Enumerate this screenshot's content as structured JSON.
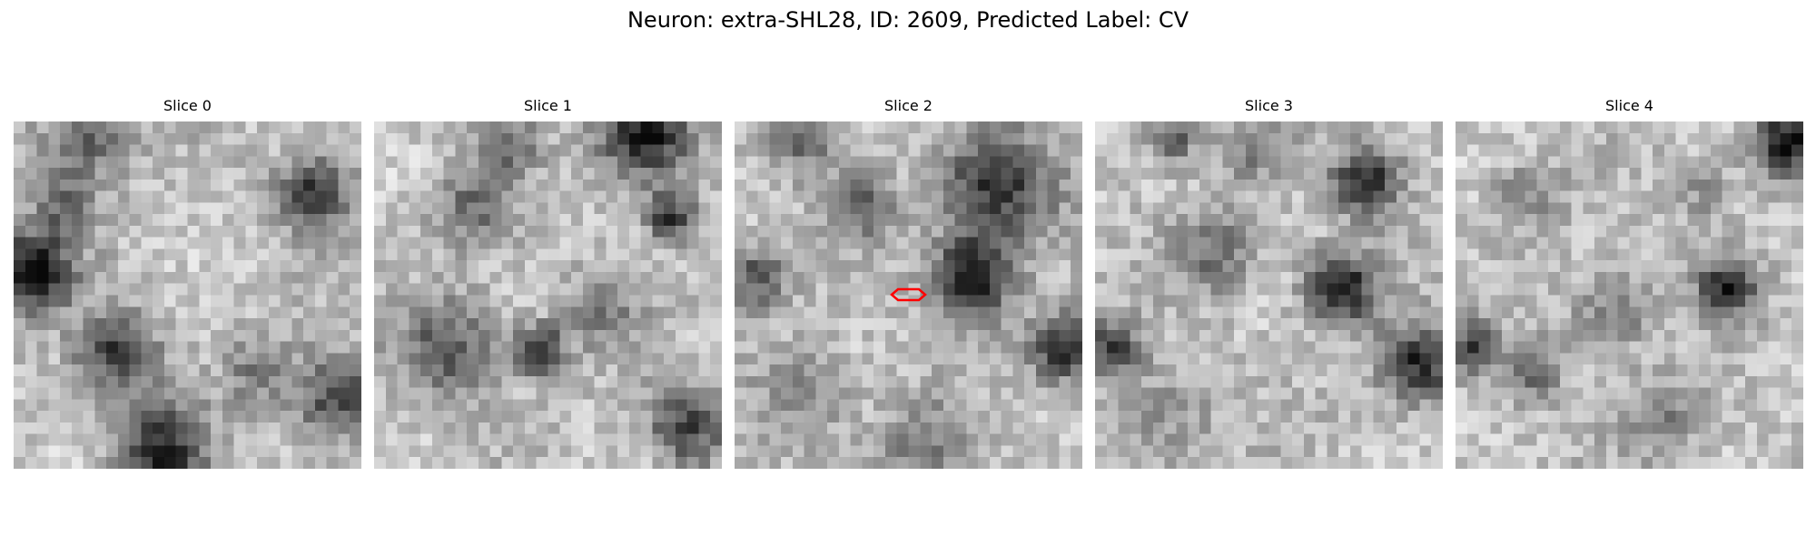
{
  "figure": {
    "title": "Neuron: extra-SHL28, ID: 2609, Predicted Label: CV",
    "grid_size": 30,
    "marker_color": "#ff0000",
    "marker_slice_index": 2
  },
  "slices": [
    {
      "label": "Slice 0",
      "blobs": [
        [
          0.05,
          0.43,
          0.08,
          0.9
        ],
        [
          0.2,
          0.05,
          0.09,
          0.55
        ],
        [
          0.86,
          0.2,
          0.07,
          0.8
        ],
        [
          0.3,
          0.67,
          0.08,
          0.7
        ],
        [
          0.42,
          0.95,
          0.09,
          0.8
        ],
        [
          0.93,
          0.8,
          0.09,
          0.65
        ],
        [
          0.7,
          0.72,
          0.07,
          0.35
        ],
        [
          0.15,
          0.25,
          0.06,
          0.45
        ]
      ]
    },
    {
      "label": "Slice 1",
      "blobs": [
        [
          0.78,
          0.04,
          0.09,
          0.95
        ],
        [
          0.28,
          0.25,
          0.08,
          0.45
        ],
        [
          0.47,
          0.66,
          0.05,
          0.9
        ],
        [
          0.85,
          0.27,
          0.05,
          0.75
        ],
        [
          0.22,
          0.66,
          0.1,
          0.55
        ],
        [
          0.9,
          0.88,
          0.08,
          0.65
        ],
        [
          0.38,
          0.06,
          0.06,
          0.45
        ],
        [
          0.65,
          0.55,
          0.08,
          0.35
        ]
      ]
    },
    {
      "label": "Slice 2",
      "blobs": [
        [
          0.68,
          0.45,
          0.08,
          0.95
        ],
        [
          0.75,
          0.18,
          0.11,
          0.8
        ],
        [
          0.07,
          0.45,
          0.06,
          0.6
        ],
        [
          0.95,
          0.65,
          0.07,
          0.85
        ],
        [
          0.37,
          0.25,
          0.06,
          0.5
        ],
        [
          0.2,
          0.05,
          0.07,
          0.45
        ],
        [
          0.55,
          0.95,
          0.1,
          0.35
        ],
        [
          0.2,
          0.78,
          0.1,
          0.3
        ]
      ]
    },
    {
      "label": "Slice 3",
      "blobs": [
        [
          0.7,
          0.48,
          0.07,
          0.95
        ],
        [
          0.78,
          0.17,
          0.07,
          0.85
        ],
        [
          0.05,
          0.65,
          0.06,
          0.65
        ],
        [
          0.93,
          0.7,
          0.08,
          0.8
        ],
        [
          0.35,
          0.38,
          0.08,
          0.45
        ],
        [
          0.22,
          0.05,
          0.05,
          0.6
        ],
        [
          0.2,
          0.85,
          0.1,
          0.3
        ],
        [
          0.45,
          0.08,
          0.07,
          0.35
        ]
      ]
    },
    {
      "label": "Slice 4",
      "blobs": [
        [
          0.95,
          0.06,
          0.07,
          0.95
        ],
        [
          0.78,
          0.48,
          0.06,
          0.8
        ],
        [
          0.05,
          0.65,
          0.05,
          0.65
        ],
        [
          0.22,
          0.72,
          0.06,
          0.5
        ],
        [
          0.45,
          0.55,
          0.08,
          0.4
        ],
        [
          0.2,
          0.22,
          0.07,
          0.35
        ],
        [
          0.6,
          0.85,
          0.08,
          0.35
        ],
        [
          0.72,
          0.2,
          0.06,
          0.3
        ]
      ]
    }
  ]
}
